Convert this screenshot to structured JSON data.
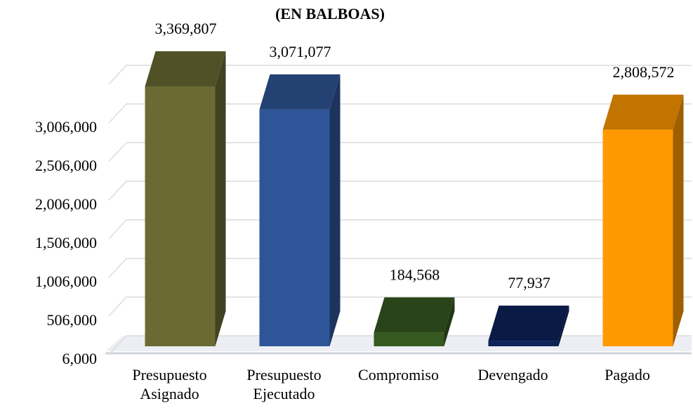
{
  "chart_data": {
    "type": "bar3d",
    "title": "(EN BALBOAS)",
    "categories": [
      "Presupuesto Asignado",
      "Presupuesto Ejecutado",
      "Compromiso",
      "Devengado",
      "Pagado"
    ],
    "values": [
      3369807,
      3071077,
      184568,
      77937,
      2808572
    ],
    "value_labels": [
      "3,369,807",
      "3,071,077",
      "184,568",
      "77,937",
      "2,808,572"
    ],
    "colors": [
      "#6b6a33",
      "#2e5597",
      "#35591f",
      "#0c2259",
      "#ff9900"
    ],
    "ylim": [
      6000,
      3506000
    ],
    "yticks": [
      {
        "value": 6000,
        "label": "6,000"
      },
      {
        "value": 506000,
        "label": "506,000"
      },
      {
        "value": 1006000,
        "label": "1,006,000"
      },
      {
        "value": 1506000,
        "label": "1,506,000"
      },
      {
        "value": 2006000,
        "label": "2,006,000"
      },
      {
        "value": 2506000,
        "label": "2,506,000"
      },
      {
        "value": 3006000,
        "label": "3,006,000"
      }
    ],
    "grid": true
  }
}
